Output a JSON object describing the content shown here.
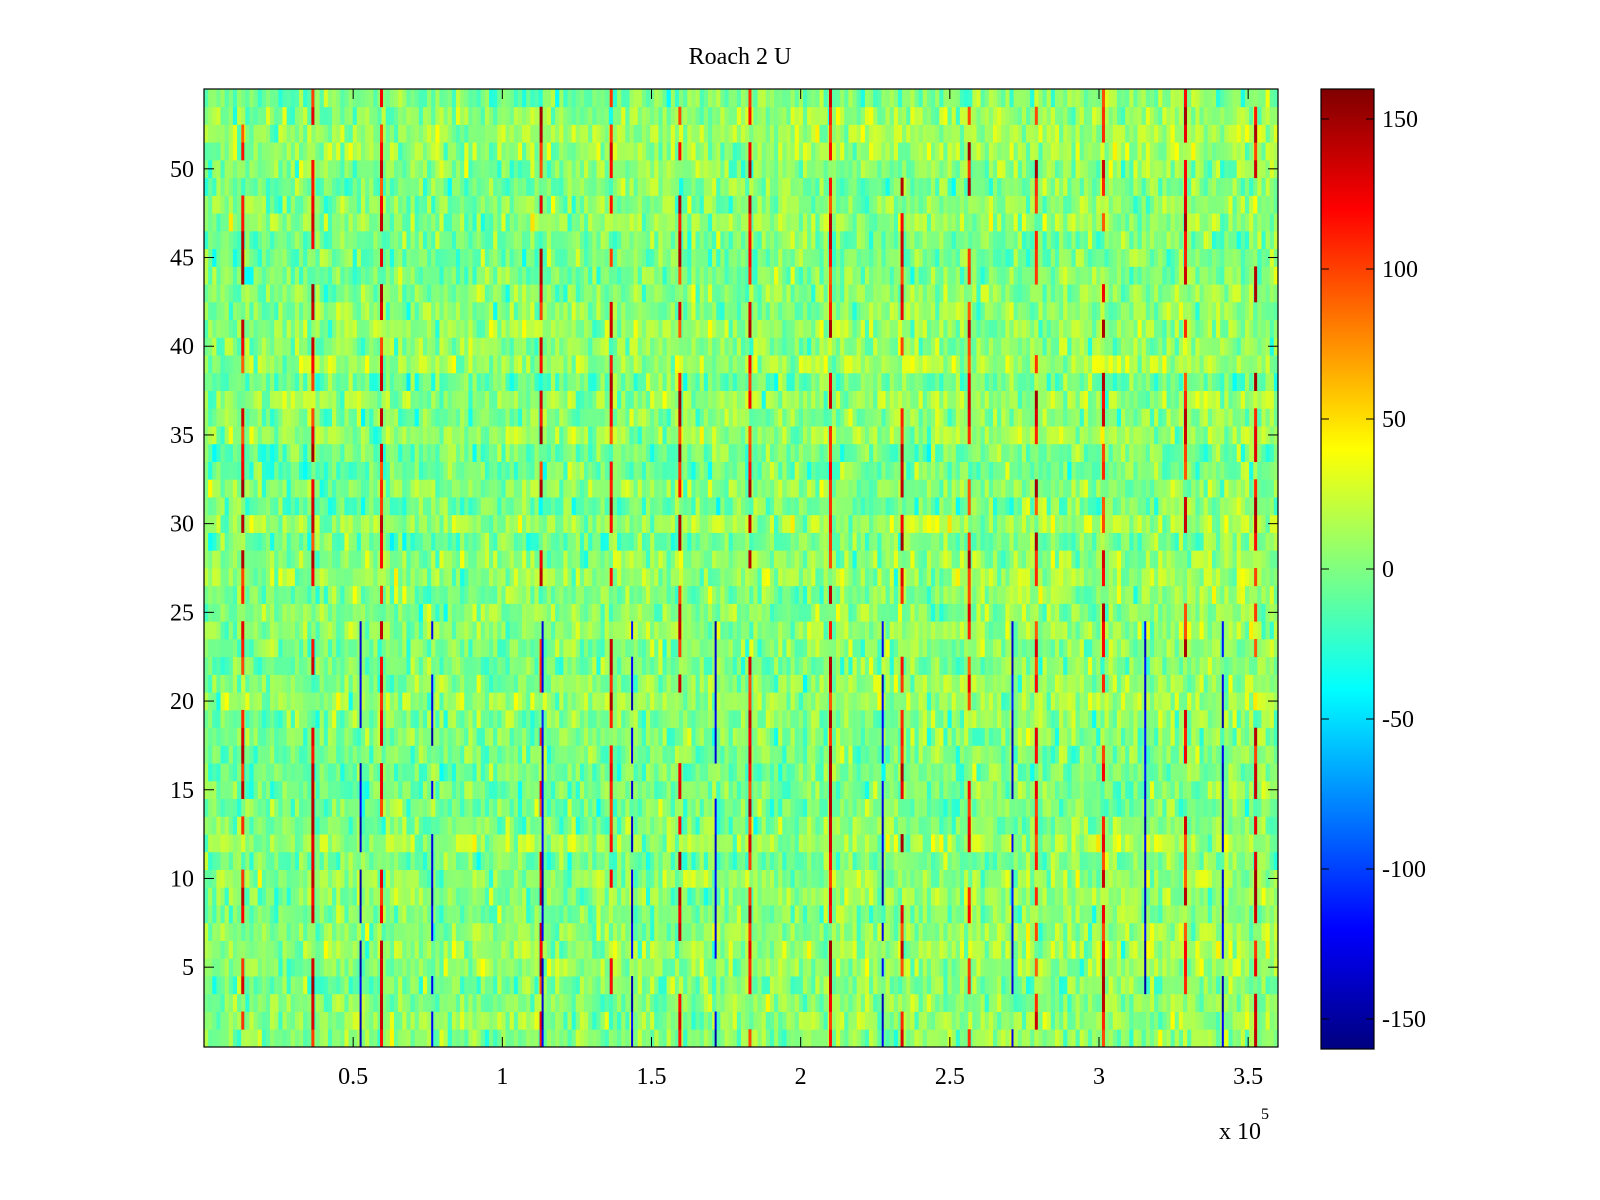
{
  "chart_data": [
    {
      "type": "heatmap",
      "title": "Roach 2 U",
      "xlabel": "",
      "ylabel": "",
      "xlim": [
        1,
        360000
      ],
      "ylim": [
        0.5,
        54.5
      ],
      "x_ticks": [
        {
          "value": 50000,
          "label": "0.5"
        },
        {
          "value": 100000,
          "label": "1"
        },
        {
          "value": 150000,
          "label": "1.5"
        },
        {
          "value": 200000,
          "label": "2"
        },
        {
          "value": 250000,
          "label": "2.5"
        },
        {
          "value": 300000,
          "label": "3"
        },
        {
          "value": 350000,
          "label": "3.5"
        }
      ],
      "x_multiplier": {
        "base": "x 10",
        "exponent": "5"
      },
      "y_ticks": [
        {
          "value": 5,
          "label": "5"
        },
        {
          "value": 10,
          "label": "10"
        },
        {
          "value": 15,
          "label": "15"
        },
        {
          "value": 20,
          "label": "20"
        },
        {
          "value": 25,
          "label": "25"
        },
        {
          "value": 30,
          "label": "30"
        },
        {
          "value": 35,
          "label": "35"
        },
        {
          "value": 40,
          "label": "40"
        },
        {
          "value": 45,
          "label": "45"
        },
        {
          "value": 50,
          "label": "50"
        }
      ],
      "rows": 54,
      "colormap": "jet",
      "color_range": [
        -160,
        160
      ],
      "background_value": 0,
      "pattern": "dense noise centred near 0 with periodic vertical spikes (positive spikes in most rows, negative spikes in rows 1-24)",
      "positive_spike_x": [
        13000,
        36500,
        59500,
        113000,
        136500,
        159500,
        183000,
        210000,
        234000,
        256500,
        279000,
        301500,
        329000,
        352500
      ],
      "positive_spike_value": 150,
      "negative_spike_x": [
        52500,
        76500,
        113500,
        143500,
        171500,
        227500,
        271000,
        315500,
        341500
      ],
      "negative_spike_rows": [
        1,
        24
      ],
      "negative_spike_value": -150,
      "grid": false,
      "legend": "none"
    },
    {
      "type": "colorbar",
      "colormap": "jet",
      "range": [
        -160,
        160
      ],
      "ticks": [
        {
          "value": 150,
          "label": "150"
        },
        {
          "value": 100,
          "label": "100"
        },
        {
          "value": 50,
          "label": "50"
        },
        {
          "value": 0,
          "label": "0"
        },
        {
          "value": -50,
          "label": "-50"
        },
        {
          "value": -100,
          "label": "-100"
        },
        {
          "value": -150,
          "label": "-150"
        }
      ]
    }
  ]
}
